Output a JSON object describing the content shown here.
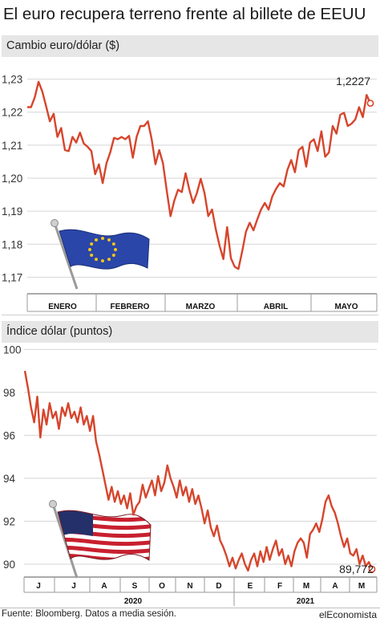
{
  "header": {
    "title": "El euro recupera terreno frente al billete de EEUU"
  },
  "footer": {
    "source": "Fuente: Bloomberg. Datos a media sesión.",
    "brand": "elEconomista"
  },
  "colors": {
    "line": "#d6452c",
    "grid": "#d5d5d5",
    "panel": "#e6e6e6"
  },
  "icons": {
    "top_flag": "eu-flag-icon",
    "bottom_flag": "us-flag-icon"
  },
  "chart_data": [
    {
      "type": "line",
      "title": "Cambio euro/dólar ($)",
      "ylim": [
        1.165,
        1.235
      ],
      "y_ticks": [
        1.17,
        1.18,
        1.19,
        1.2,
        1.21,
        1.22,
        1.23
      ],
      "y_tick_labels": [
        "1,17",
        "1,18",
        "1,19",
        "1,20",
        "1,21",
        "1,22",
        "1,23"
      ],
      "x_tick_labels": [
        "ENERO",
        "FEBRERO",
        "MARZO",
        "ABRIL",
        "MAYO"
      ],
      "grid": true,
      "last_value_label": "1,2227",
      "series": [
        {
          "values": [
            1.2215,
            1.2215,
            1.2245,
            1.2292,
            1.2262,
            1.2218,
            1.2172,
            1.2195,
            1.2125,
            1.2152,
            1.2085,
            1.2082,
            1.2125,
            1.2108,
            1.2138,
            1.2105,
            1.2095,
            1.2082,
            1.2012,
            1.2042,
            1.1985,
            1.2045,
            1.2078,
            1.2122,
            1.2118,
            1.2125,
            1.2118,
            1.2128,
            1.2062,
            1.2125,
            1.2158,
            1.2158,
            1.2172,
            1.2118,
            1.2042,
            1.2085,
            1.2045,
            1.1962,
            1.1885,
            1.1932,
            1.1965,
            1.1958,
            1.2015,
            1.1965,
            1.1925,
            1.1955,
            1.1998,
            1.1955,
            1.1885,
            1.1905,
            1.1845,
            1.1795,
            1.1755,
            1.1852,
            1.1758,
            1.1732,
            1.1725,
            1.1778,
            1.1838,
            1.1865,
            1.1842,
            1.1875,
            1.1905,
            1.1925,
            1.1905,
            1.1945,
            1.1968,
            1.1985,
            1.1975,
            1.2025,
            1.2055,
            1.2018,
            1.2085,
            1.2095,
            1.2035,
            1.2108,
            1.2118,
            1.2082,
            1.2142,
            1.2065,
            1.2078,
            1.2158,
            1.2135,
            1.2192,
            1.2198,
            1.2158,
            1.2165,
            1.2178,
            1.2215,
            1.2185,
            1.2252,
            1.2227
          ]
        }
      ]
    },
    {
      "type": "line",
      "title": "Índice dólar (puntos)",
      "ylim": [
        89.4,
        100.2
      ],
      "y_ticks": [
        90,
        92,
        94,
        96,
        98,
        100
      ],
      "y_tick_labels": [
        "90",
        "92",
        "94",
        "96",
        "98",
        "100"
      ],
      "x_tick_labels": [
        "J",
        "J",
        "A",
        "S",
        "O",
        "N",
        "D",
        "E",
        "F",
        "M",
        "A",
        "M"
      ],
      "year_labels": [
        "2020",
        "2021"
      ],
      "grid": true,
      "last_value_label": "89,772",
      "series": [
        {
          "values": [
            99.0,
            98.2,
            97.3,
            96.6,
            97.8,
            95.9,
            97.2,
            96.5,
            97.5,
            96.8,
            97.1,
            96.3,
            97.3,
            96.9,
            97.5,
            96.8,
            97.1,
            96.6,
            97.3,
            96.5,
            96.9,
            96.2,
            96.9,
            95.7,
            95.1,
            94.4,
            93.7,
            93.0,
            93.6,
            92.9,
            93.4,
            92.8,
            93.2,
            92.6,
            93.3,
            92.3,
            92.7,
            92.9,
            93.7,
            93.1,
            93.5,
            93.9,
            93.2,
            94.1,
            93.4,
            93.8,
            94.6,
            94.0,
            93.6,
            93.1,
            93.9,
            93.2,
            93.6,
            92.9,
            93.5,
            92.8,
            93.2,
            92.6,
            91.9,
            92.5,
            91.7,
            91.3,
            91.8,
            91.1,
            90.8,
            90.4,
            89.9,
            90.3,
            89.8,
            90.2,
            90.5,
            90.0,
            89.7,
            90.2,
            90.5,
            89.9,
            90.6,
            90.1,
            90.8,
            90.2,
            90.7,
            91.1,
            90.4,
            90.7,
            90.0,
            90.4,
            89.9,
            90.6,
            91.0,
            91.2,
            91.0,
            90.3,
            91.4,
            91.6,
            91.9,
            91.5,
            92.1,
            92.9,
            93.2,
            92.7,
            92.4,
            91.9,
            91.3,
            90.8,
            91.2,
            90.5,
            90.4,
            90.7,
            90.0,
            90.4,
            89.9,
            90.1,
            89.77
          ]
        }
      ]
    }
  ]
}
